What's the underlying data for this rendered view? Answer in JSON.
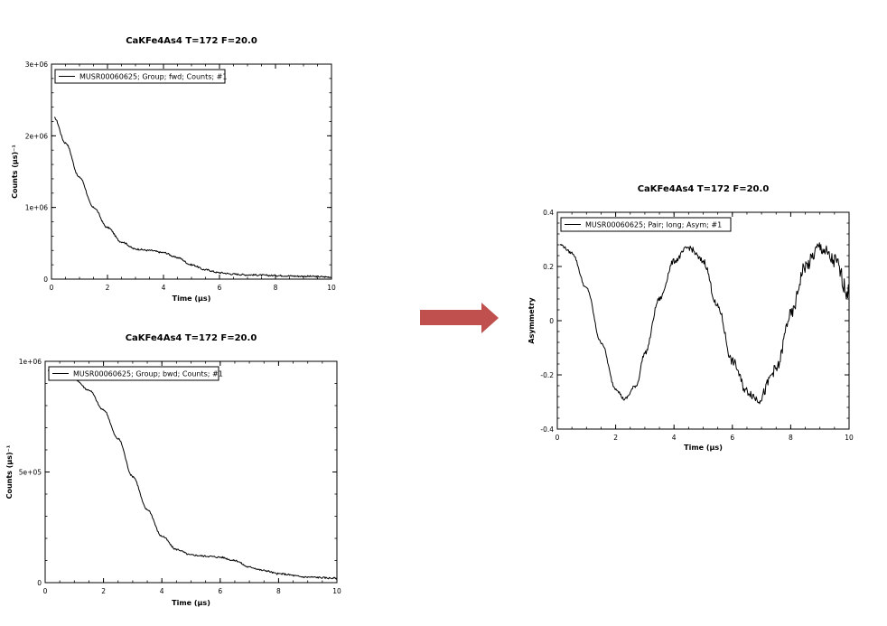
{
  "arrow": {
    "color": "#c0504d"
  },
  "chart_data": [
    {
      "id": "fwd",
      "type": "line",
      "title": "CaKFe4As4 T=172 F=20.0",
      "xlabel": "Time (µs)",
      "ylabel": "Counts (µs)⁻¹",
      "xlim": [
        0,
        10
      ],
      "ylim": [
        0,
        3000000
      ],
      "xticks": [
        0,
        2,
        4,
        6,
        8,
        10
      ],
      "xtick_labels": [
        "0",
        "2",
        "4",
        "6",
        "8",
        "10"
      ],
      "yticks": [
        0,
        1000000,
        2000000,
        3000000
      ],
      "ytick_labels": [
        "0",
        "1e+06",
        "2e+06",
        "3e+06"
      ],
      "grid": false,
      "legend_position": "top-left",
      "series": [
        {
          "name": "MUSR00060625; Group; fwd; Counts; #1",
          "x": [
            0.1,
            0.5,
            1,
            1.5,
            2,
            2.5,
            3,
            3.5,
            4,
            4.5,
            5,
            5.5,
            6,
            6.5,
            7,
            8,
            9,
            10
          ],
          "y": [
            2250000,
            1900000,
            1420000,
            1000000,
            720000,
            520000,
            420000,
            400000,
            370000,
            300000,
            200000,
            130000,
            90000,
            70000,
            60000,
            50000,
            40000,
            30000
          ]
        }
      ]
    },
    {
      "id": "bwd",
      "type": "line",
      "title": "CaKFe4As4 T=172 F=20.0",
      "xlabel": "Time (µs)",
      "ylabel": "Counts (µs)⁻¹",
      "xlim": [
        0,
        10
      ],
      "ylim": [
        0,
        1000000
      ],
      "xticks": [
        0,
        2,
        4,
        6,
        8,
        10
      ],
      "xtick_labels": [
        "0",
        "2",
        "4",
        "6",
        "8",
        "10"
      ],
      "yticks": [
        0,
        500000,
        1000000
      ],
      "ytick_labels": [
        "0",
        "5e+05",
        "1e+06"
      ],
      "grid": false,
      "legend_position": "top-left",
      "series": [
        {
          "name": "MUSR00060625; Group; bwd; Counts; #1",
          "x": [
            0.1,
            0.5,
            1,
            1.5,
            2,
            2.5,
            3,
            3.5,
            4,
            4.5,
            5,
            5.5,
            6,
            6.5,
            7,
            7.5,
            8,
            9,
            10
          ],
          "y": [
            960000,
            950000,
            920000,
            870000,
            780000,
            650000,
            480000,
            330000,
            210000,
            150000,
            125000,
            120000,
            115000,
            100000,
            70000,
            55000,
            40000,
            25000,
            20000
          ]
        }
      ]
    },
    {
      "id": "asym",
      "type": "line",
      "title": "CaKFe4As4 T=172 F=20.0",
      "xlabel": "Time (µs)",
      "ylabel": "Asymmetry",
      "xlim": [
        0,
        10
      ],
      "ylim": [
        -0.4,
        0.4
      ],
      "xticks": [
        0,
        2,
        4,
        6,
        8,
        10
      ],
      "xtick_labels": [
        "0",
        "2",
        "4",
        "6",
        "8",
        "10"
      ],
      "yticks": [
        -0.4,
        -0.2,
        0,
        0.2,
        0.4
      ],
      "ytick_labels": [
        "-0.4",
        "-0.2",
        "0",
        "0.2",
        "0.4"
      ],
      "grid": false,
      "legend_position": "top-left",
      "series": [
        {
          "name": "MUSR00060625; Pair; long; Asym; #1",
          "x": [
            0.1,
            0.5,
            1,
            1.5,
            2,
            2.3,
            2.7,
            3,
            3.5,
            4,
            4.5,
            5,
            5.5,
            6,
            6.5,
            6.9,
            7.5,
            8,
            8.5,
            9,
            9.5,
            10
          ],
          "y": [
            0.28,
            0.25,
            0.12,
            -0.08,
            -0.25,
            -0.29,
            -0.24,
            -0.12,
            0.08,
            0.22,
            0.27,
            0.22,
            0.05,
            -0.15,
            -0.26,
            -0.29,
            -0.18,
            0.02,
            0.2,
            0.27,
            0.22,
            0.1
          ]
        }
      ]
    }
  ]
}
